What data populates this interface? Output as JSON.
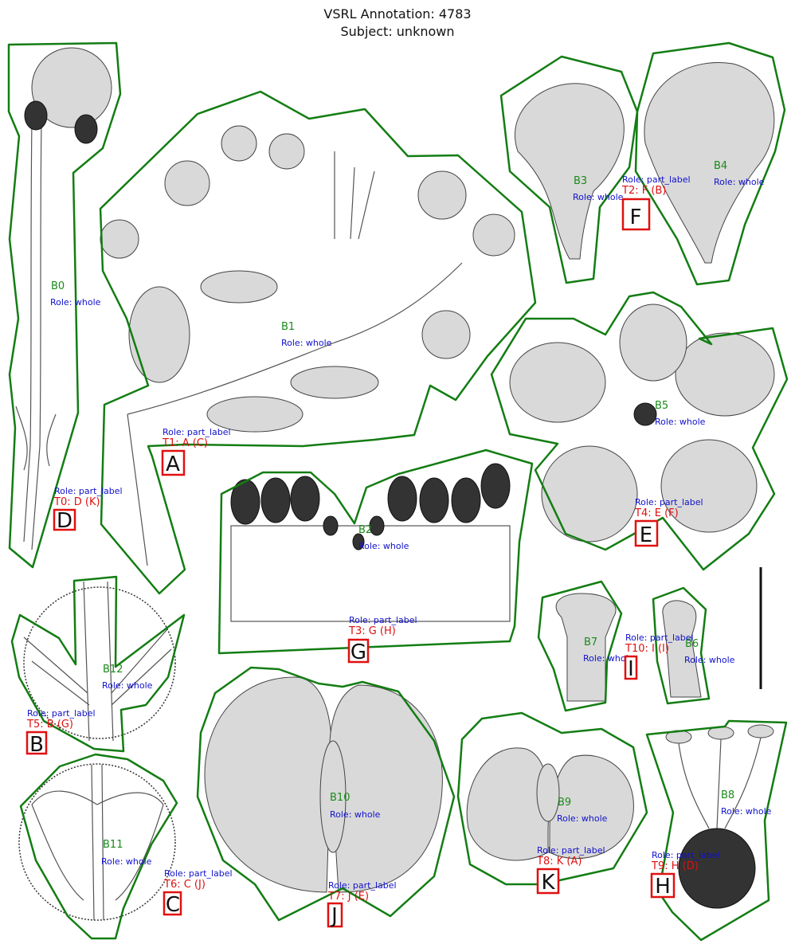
{
  "header": {
    "title_line1": "VSRL Annotation: 4783",
    "title_line2": "Subject: unknown"
  },
  "blobs": [
    {
      "id": "B0",
      "role": "Role: whole"
    },
    {
      "id": "B1",
      "role": "Role: whole"
    },
    {
      "id": "B2",
      "role": "Role: whole"
    },
    {
      "id": "B3",
      "role": "Role: whole"
    },
    {
      "id": "B4",
      "role": "Role: whole"
    },
    {
      "id": "B5",
      "role": "Role: whole"
    },
    {
      "id": "B6",
      "role": "Role: whole"
    },
    {
      "id": "B7",
      "role": "Role: whole"
    },
    {
      "id": "B8",
      "role": "Role: whole"
    },
    {
      "id": "B9",
      "role": "Role: whole"
    },
    {
      "id": "B10",
      "role": "Role: whole"
    },
    {
      "id": "B11",
      "role": "Role: whole"
    },
    {
      "id": "B12",
      "role": "Role: whole"
    }
  ],
  "text_labels": [
    {
      "id": "T0: D (K)",
      "role": "Role: part_label",
      "letter": "D"
    },
    {
      "id": "T1: A (C)",
      "role": "Role: part_label",
      "letter": "A"
    },
    {
      "id": "T2: F (B)",
      "role": "Role: part_label",
      "letter": "F"
    },
    {
      "id": "T3: G (H)",
      "role": "Role: part_label",
      "letter": "G"
    },
    {
      "id": "T4: E (F)",
      "role": "Role: part_label",
      "letter": "E"
    },
    {
      "id": "T5: B (G)",
      "role": "Role: part_label",
      "letter": "B"
    },
    {
      "id": "T6: C (J)",
      "role": "Role: part_label",
      "letter": "C"
    },
    {
      "id": "T7: J (E)",
      "role": "Role: part_label",
      "letter": "J"
    },
    {
      "id": "T8: K (A)",
      "role": "Role: part_label",
      "letter": "K"
    },
    {
      "id": "T9: H (D)",
      "role": "Role: part_label",
      "letter": "H"
    },
    {
      "id": "T10: I (I)",
      "role": "Role: part_label",
      "letter": "I"
    }
  ],
  "colors": {
    "outline": "#137d13",
    "blob_id": "#1a8a1a",
    "role": "#1010cc",
    "label_id": "#e01010",
    "box": "#e01010"
  }
}
